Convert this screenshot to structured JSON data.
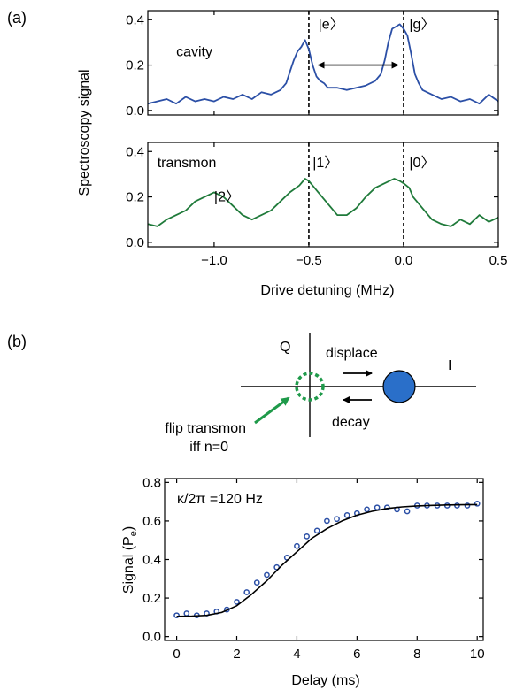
{
  "panels": {
    "a": "(a)",
    "b": "(b)"
  },
  "chart_data": [
    {
      "id": "cavity",
      "type": "line",
      "color": "#2b4fa6",
      "ylabel": "Spectroscopy signal",
      "xlim": [
        -1.35,
        0.5
      ],
      "ylim": [
        -0.02,
        0.44
      ],
      "yticks": [
        0.0,
        0.2,
        0.4
      ],
      "ytick_labels": [
        "0.0",
        "0.2",
        "0.4"
      ],
      "annotations": [
        {
          "text": "cavity",
          "x": -1.2,
          "y": 0.24
        },
        {
          "text": "|e〉",
          "x": -0.45,
          "y": 0.36
        },
        {
          "text": "|g〉",
          "x": 0.03,
          "y": 0.36
        }
      ],
      "vlines": [
        -0.5,
        0.0
      ],
      "arrow": [
        -0.45,
        -0.03,
        0.2
      ],
      "series": [
        {
          "x": [
            -1.35,
            -1.3,
            -1.25,
            -1.2,
            -1.15,
            -1.1,
            -1.05,
            -1.0,
            -0.95,
            -0.9,
            -0.85,
            -0.8,
            -0.75,
            -0.7,
            -0.65,
            -0.62,
            -0.6,
            -0.58,
            -0.56,
            -0.54,
            -0.52,
            -0.5,
            -0.48,
            -0.46,
            -0.44,
            -0.42,
            -0.4,
            -0.35,
            -0.3,
            -0.25,
            -0.2,
            -0.15,
            -0.12,
            -0.1,
            -0.08,
            -0.06,
            -0.04,
            -0.02,
            0.0,
            0.02,
            0.04,
            0.06,
            0.08,
            0.1,
            0.15,
            0.2,
            0.25,
            0.3,
            0.35,
            0.4,
            0.45,
            0.5
          ],
          "y": [
            0.03,
            0.04,
            0.05,
            0.03,
            0.06,
            0.04,
            0.05,
            0.04,
            0.06,
            0.05,
            0.07,
            0.05,
            0.08,
            0.07,
            0.09,
            0.12,
            0.17,
            0.22,
            0.26,
            0.28,
            0.31,
            0.27,
            0.2,
            0.15,
            0.13,
            0.12,
            0.1,
            0.1,
            0.09,
            0.1,
            0.11,
            0.13,
            0.16,
            0.22,
            0.3,
            0.36,
            0.37,
            0.38,
            0.36,
            0.33,
            0.25,
            0.16,
            0.12,
            0.09,
            0.07,
            0.05,
            0.06,
            0.04,
            0.05,
            0.03,
            0.07,
            0.04
          ]
        }
      ]
    },
    {
      "id": "transmon",
      "type": "line",
      "color": "#1f7a3a",
      "xlabel": "Drive detuning (MHz)",
      "xlim": [
        -1.35,
        0.5
      ],
      "xticks": [
        -1.0,
        -0.5,
        0.0,
        0.5
      ],
      "xtick_labels": [
        "−1.0",
        "−0.5",
        "0.0",
        "0.5"
      ],
      "ylim": [
        -0.02,
        0.44
      ],
      "yticks": [
        0.0,
        0.2,
        0.4
      ],
      "ytick_labels": [
        "0.0",
        "0.2",
        "0.4"
      ],
      "annotations": [
        {
          "text": "transmon",
          "x": -1.3,
          "y": 0.33
        },
        {
          "text": "|2〉",
          "x": -1.0,
          "y": 0.18
        },
        {
          "text": "|1〉",
          "x": -0.48,
          "y": 0.33
        },
        {
          "text": "|0〉",
          "x": 0.03,
          "y": 0.33
        }
      ],
      "vlines": [
        -0.5,
        0.0
      ],
      "series": [
        {
          "x": [
            -1.35,
            -1.3,
            -1.25,
            -1.2,
            -1.15,
            -1.1,
            -1.05,
            -1.0,
            -0.95,
            -0.9,
            -0.85,
            -0.8,
            -0.75,
            -0.7,
            -0.65,
            -0.6,
            -0.55,
            -0.52,
            -0.5,
            -0.48,
            -0.45,
            -0.4,
            -0.35,
            -0.3,
            -0.25,
            -0.2,
            -0.15,
            -0.1,
            -0.05,
            -0.02,
            0.0,
            0.03,
            0.05,
            0.1,
            0.15,
            0.2,
            0.25,
            0.3,
            0.35,
            0.4,
            0.45,
            0.5
          ],
          "y": [
            0.08,
            0.07,
            0.1,
            0.12,
            0.14,
            0.18,
            0.2,
            0.22,
            0.2,
            0.16,
            0.12,
            0.1,
            0.12,
            0.14,
            0.18,
            0.22,
            0.25,
            0.28,
            0.27,
            0.25,
            0.22,
            0.17,
            0.12,
            0.12,
            0.15,
            0.2,
            0.24,
            0.26,
            0.28,
            0.27,
            0.26,
            0.24,
            0.2,
            0.15,
            0.1,
            0.08,
            0.07,
            0.1,
            0.08,
            0.12,
            0.09,
            0.11
          ]
        }
      ]
    },
    {
      "id": "decay",
      "type": "scatter",
      "color": "#2b4fa6",
      "xlabel": "Delay (ms)",
      "ylabel": "Signal (P",
      "ylabel_sub": "e",
      "ylabel_close": ")",
      "xlim": [
        -0.4,
        10.2
      ],
      "ylim": [
        -0.02,
        0.82
      ],
      "xticks": [
        0,
        2,
        4,
        6,
        8,
        10
      ],
      "xtick_labels": [
        "0",
        "2",
        "4",
        "6",
        "8",
        "10"
      ],
      "yticks": [
        0.0,
        0.2,
        0.4,
        0.6,
        0.8
      ],
      "ytick_labels": [
        "0.0",
        "0.2",
        "0.4",
        "0.6",
        "0.8"
      ],
      "legend_text": "κ/2π =120 Hz",
      "series": [
        {
          "name": "data",
          "x": [
            0.0,
            0.33,
            0.67,
            1.0,
            1.33,
            1.67,
            2.0,
            2.33,
            2.67,
            3.0,
            3.33,
            3.67,
            4.0,
            4.33,
            4.67,
            5.0,
            5.33,
            5.67,
            6.0,
            6.33,
            6.67,
            7.0,
            7.33,
            7.67,
            8.0,
            8.33,
            8.67,
            9.0,
            9.33,
            9.67,
            10.0
          ],
          "y": [
            0.11,
            0.12,
            0.11,
            0.12,
            0.13,
            0.14,
            0.18,
            0.23,
            0.28,
            0.32,
            0.36,
            0.41,
            0.47,
            0.52,
            0.55,
            0.6,
            0.61,
            0.63,
            0.64,
            0.66,
            0.67,
            0.67,
            0.66,
            0.65,
            0.68,
            0.68,
            0.68,
            0.68,
            0.68,
            0.68,
            0.69
          ]
        },
        {
          "name": "fit",
          "x": [
            0.0,
            0.5,
            1.0,
            1.5,
            2.0,
            2.5,
            3.0,
            3.5,
            4.0,
            4.5,
            5.0,
            5.5,
            6.0,
            6.5,
            7.0,
            7.5,
            8.0,
            8.5,
            9.0,
            9.5,
            10.0
          ],
          "y": [
            0.105,
            0.106,
            0.11,
            0.125,
            0.16,
            0.22,
            0.29,
            0.37,
            0.44,
            0.51,
            0.56,
            0.6,
            0.63,
            0.65,
            0.665,
            0.673,
            0.678,
            0.681,
            0.683,
            0.684,
            0.685
          ]
        }
      ]
    }
  ],
  "diagram": {
    "q_label": "Q",
    "i_label": "I",
    "displace_label": "displace",
    "decay_label": "decay",
    "flip_label_1": "flip transmon",
    "flip_label_2": "iff n=0",
    "circle_color": "#2a6fc9",
    "dashed_color": "#1f9a4a"
  }
}
